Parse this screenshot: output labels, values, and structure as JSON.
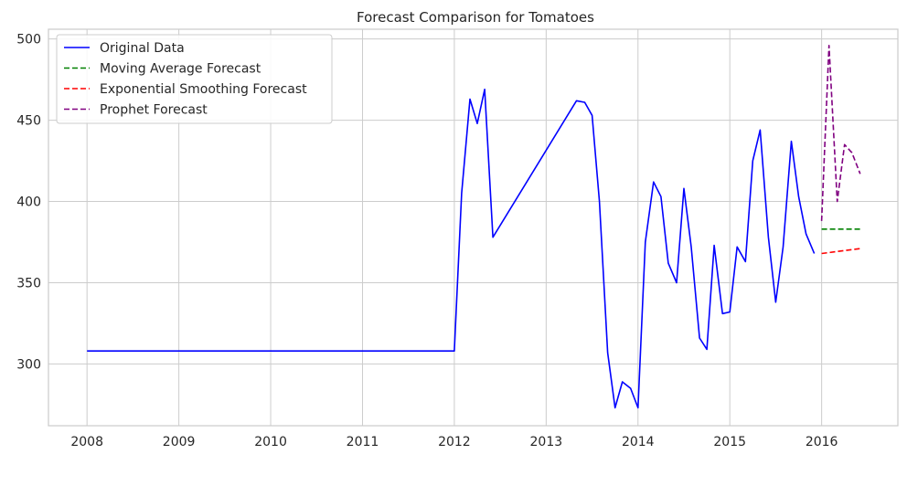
{
  "chart_data": {
    "type": "line",
    "title": "Forecast Comparison for Tomatoes",
    "xlabel": "",
    "ylabel": "",
    "xlim": [
      2007.58,
      2016.83
    ],
    "ylim": [
      262,
      506
    ],
    "x_ticks": [
      2008,
      2009,
      2010,
      2011,
      2012,
      2013,
      2014,
      2015,
      2016
    ],
    "y_ticks": [
      300,
      350,
      400,
      450,
      500
    ],
    "grid": true,
    "legend_position": "top-left",
    "series": [
      {
        "name": "Original Data",
        "color": "#0000ff",
        "style": "solid",
        "points": [
          [
            2008.0,
            308
          ],
          [
            2012.0,
            308
          ],
          [
            2012.08,
            405
          ],
          [
            2012.17,
            463
          ],
          [
            2012.25,
            448
          ],
          [
            2012.33,
            469
          ],
          [
            2012.42,
            378
          ],
          [
            2013.33,
            462
          ],
          [
            2013.42,
            461
          ],
          [
            2013.5,
            453
          ],
          [
            2013.58,
            400
          ],
          [
            2013.67,
            307
          ],
          [
            2013.75,
            273
          ],
          [
            2013.83,
            289
          ],
          [
            2013.92,
            285
          ],
          [
            2014.0,
            273
          ],
          [
            2014.08,
            375
          ],
          [
            2014.17,
            412
          ],
          [
            2014.25,
            403
          ],
          [
            2014.33,
            362
          ],
          [
            2014.42,
            350
          ],
          [
            2014.5,
            408
          ],
          [
            2014.58,
            372
          ],
          [
            2014.67,
            316
          ],
          [
            2014.75,
            309
          ],
          [
            2014.83,
            373
          ],
          [
            2014.92,
            331
          ],
          [
            2015.0,
            332
          ],
          [
            2015.08,
            372
          ],
          [
            2015.17,
            363
          ],
          [
            2015.25,
            425
          ],
          [
            2015.33,
            444
          ],
          [
            2015.42,
            378
          ],
          [
            2015.5,
            338
          ],
          [
            2015.58,
            372
          ],
          [
            2015.67,
            437
          ],
          [
            2015.75,
            403
          ],
          [
            2015.83,
            380
          ],
          [
            2015.92,
            368
          ]
        ]
      },
      {
        "name": "Moving Average Forecast",
        "color": "#008000",
        "style": "dashed",
        "points": [
          [
            2016.0,
            383
          ],
          [
            2016.42,
            383
          ]
        ]
      },
      {
        "name": "Exponential Smoothing Forecast",
        "color": "#ff0000",
        "style": "dashed",
        "points": [
          [
            2016.0,
            368
          ],
          [
            2016.42,
            371
          ]
        ]
      },
      {
        "name": "Prophet Forecast",
        "color": "#800080",
        "style": "dashed",
        "points": [
          [
            2016.0,
            388
          ],
          [
            2016.08,
            496
          ],
          [
            2016.17,
            400
          ],
          [
            2016.25,
            435
          ],
          [
            2016.33,
            430
          ],
          [
            2016.42,
            417
          ]
        ]
      }
    ]
  }
}
